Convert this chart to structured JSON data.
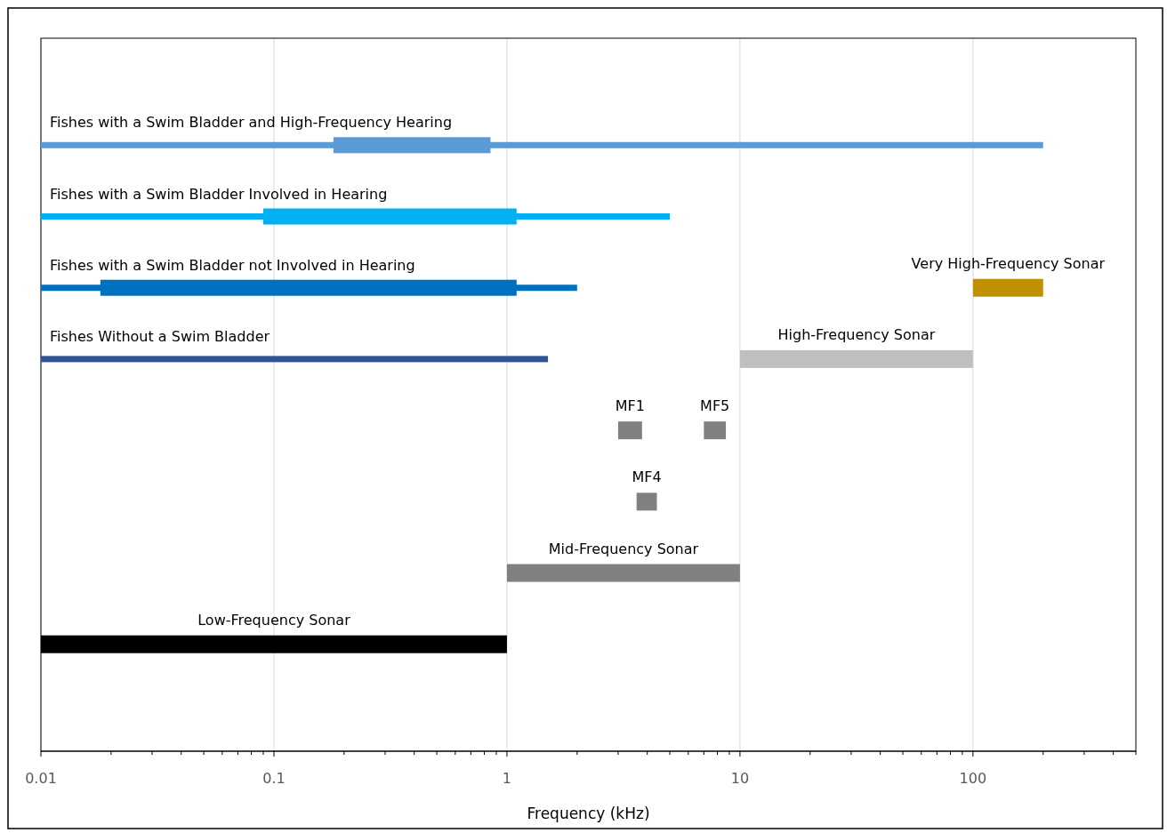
{
  "chart_data": {
    "type": "bar",
    "orientation": "horizontal",
    "xlabel": "Frequency (kHz)",
    "log": "x",
    "grid": "x",
    "categories": [
      null,
      null,
      null,
      null,
      null,
      null,
      null,
      null,
      null,
      null
    ],
    "xlim": [
      0.01,
      500
    ],
    "xticks": [
      0.01,
      {
        "value": 0.02,
        "label": null
      },
      {
        "value": 0.03,
        "label": null
      },
      {
        "value": 0.04,
        "label": null
      },
      {
        "value": 0.05,
        "label": null
      },
      {
        "value": 0.06,
        "label": null
      },
      {
        "value": 0.07,
        "label": null
      },
      {
        "value": 0.08,
        "label": null
      },
      {
        "value": 0.09,
        "label": null
      },
      0.1,
      {
        "value": 0.2,
        "label": null
      },
      {
        "value": 0.3,
        "label": null
      },
      {
        "value": 0.4,
        "label": null
      },
      {
        "value": 0.5,
        "label": null
      },
      {
        "value": 0.6,
        "label": null
      },
      {
        "value": 0.7,
        "label": null
      },
      {
        "value": 0.8,
        "label": null
      },
      {
        "value": 0.9,
        "label": null
      },
      1,
      {
        "value": 2,
        "label": null
      },
      {
        "value": 3,
        "label": null
      },
      {
        "value": 4,
        "label": null
      },
      {
        "value": 5,
        "label": null
      },
      {
        "value": 6,
        "label": null
      },
      {
        "value": 7,
        "label": null
      },
      {
        "value": 8,
        "label": null
      },
      {
        "value": 9,
        "label": null
      },
      10,
      {
        "value": 20,
        "label": null
      },
      {
        "value": 30,
        "label": null
      },
      {
        "value": 40,
        "label": null
      },
      {
        "value": 50,
        "label": null
      },
      {
        "value": 60,
        "label": null
      },
      {
        "value": 70,
        "label": null
      },
      {
        "value": 80,
        "label": null
      },
      {
        "value": 90,
        "label": null
      },
      100,
      {
        "value": 200,
        "label": null
      },
      {
        "value": 300,
        "label": null
      },
      {
        "value": 400,
        "label": null
      },
      {
        "value": 500,
        "label": null
      }
    ],
    "series": [
      {
        "name": "Fishes with a Swim Bladder and High-Frequency Hearing",
        "color": "#5b9bd5",
        "base": [
          null,
          0.18,
          null,
          null,
          null,
          null,
          null,
          null,
          null,
          null
        ],
        "values": [
          null,
          0.67,
          null,
          null,
          null,
          null,
          null,
          null,
          null,
          null
        ],
        "errors": [
          null,
          [
            0.01,
            200
          ],
          null,
          null,
          null,
          null,
          null,
          null,
          null,
          null
        ]
      },
      {
        "name": "Fishes with a Swim Bladder Involved in Hearing",
        "color": "#00b0f0",
        "base": [
          null,
          null,
          0.09,
          null,
          null,
          null,
          null,
          null,
          null,
          null
        ],
        "values": [
          null,
          null,
          1.01,
          null,
          null,
          null,
          null,
          null,
          null,
          null
        ],
        "errors": [
          null,
          null,
          [
            0.01,
            5
          ],
          null,
          null,
          null,
          null,
          null,
          null,
          null
        ]
      },
      {
        "name": "Fishes with a Swim Bladder not Involved in Hearing",
        "color": "#0070c0",
        "base": [
          null,
          null,
          null,
          0.018,
          null,
          null,
          null,
          null,
          null,
          null
        ],
        "values": [
          null,
          null,
          null,
          1.082,
          null,
          null,
          null,
          null,
          null,
          null
        ],
        "errors": [
          null,
          null,
          null,
          [
            0.01,
            2
          ],
          null,
          null,
          null,
          null,
          null,
          null
        ]
      },
      {
        "name": "Fishes Without a Swim Bladder",
        "color": "#2f5597",
        "base": [
          null,
          null,
          null,
          null,
          0.01,
          null,
          null,
          null,
          null,
          null
        ],
        "values": [
          null,
          null,
          null,
          null,
          1.49,
          null,
          null,
          null,
          null,
          null
        ],
        "errors": [
          null,
          null,
          null,
          null,
          null,
          null,
          null,
          null,
          null,
          null
        ]
      },
      {
        "name": "Very High-Frequency Sonar",
        "color": "#bf9000",
        "base": [
          null,
          null,
          null,
          100,
          null,
          null,
          null,
          null,
          null,
          null
        ],
        "values": [
          null,
          null,
          null,
          100,
          null,
          null,
          null,
          null,
          null,
          null
        ]
      },
      {
        "name": "High-Frequency Sonar",
        "color": "#bfbfbf",
        "base": [
          null,
          null,
          null,
          null,
          10,
          null,
          null,
          null,
          null,
          null
        ],
        "values": [
          null,
          null,
          null,
          null,
          90,
          null,
          null,
          null,
          null,
          null
        ]
      },
      {
        "name": "MF1",
        "color": "#808080",
        "base": [
          null,
          null,
          null,
          null,
          null,
          3,
          null,
          null,
          null,
          null
        ],
        "values": [
          null,
          null,
          null,
          null,
          null,
          0.8,
          null,
          null,
          null,
          null
        ]
      },
      {
        "name": "MF5",
        "color": "#808080",
        "base": [
          null,
          null,
          null,
          null,
          null,
          7,
          null,
          null,
          null,
          null
        ],
        "values": [
          null,
          null,
          null,
          null,
          null,
          1.7,
          null,
          null,
          null,
          null
        ]
      },
      {
        "name": "MF4",
        "color": "#808080",
        "base": [
          null,
          null,
          null,
          null,
          null,
          null,
          3.6,
          null,
          null,
          null
        ],
        "values": [
          null,
          null,
          null,
          null,
          null,
          null,
          0.8,
          null,
          null,
          null
        ]
      },
      {
        "name": "Mid-Frequency Sonar",
        "color": "#808080",
        "base": [
          null,
          null,
          null,
          null,
          null,
          null,
          null,
          1,
          null,
          null
        ],
        "values": [
          null,
          null,
          null,
          null,
          null,
          null,
          null,
          9,
          null,
          null
        ]
      },
      {
        "name": "Low-Frequency Sonar",
        "color": "#000000",
        "base": [
          null,
          null,
          null,
          null,
          null,
          null,
          null,
          null,
          0.01,
          null
        ],
        "values": [
          null,
          null,
          null,
          null,
          null,
          null,
          null,
          null,
          0.99,
          null
        ]
      }
    ]
  }
}
